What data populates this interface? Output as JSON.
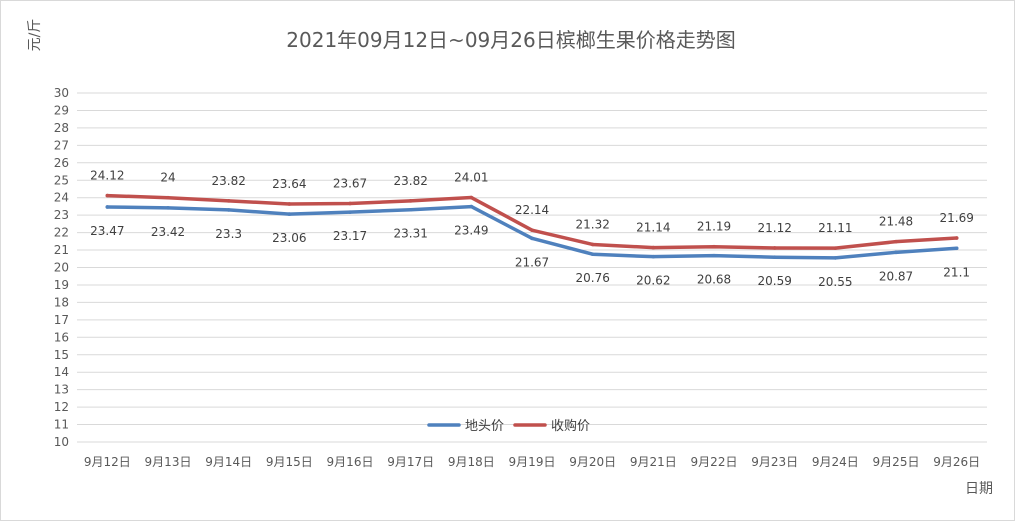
{
  "chart_data": {
    "type": "line",
    "title": "2021年09月12日~09月26日槟榔生果价格走势图",
    "ylabel": "元/斤",
    "xlabel": "日期",
    "ylim": [
      10,
      30
    ],
    "ytick_step": 1,
    "grid": true,
    "legend_position": "bottom-center",
    "categories": [
      "9月12日",
      "9月13日",
      "9月14日",
      "9月15日",
      "9月16日",
      "9月17日",
      "9月18日",
      "9月19日",
      "9月20日",
      "9月21日",
      "9月22日",
      "9月23日",
      "9月24日",
      "9月25日",
      "9月26日"
    ],
    "series": [
      {
        "name": "地头价",
        "color": "#4f81bd",
        "values": [
          23.47,
          23.42,
          23.3,
          23.06,
          23.17,
          23.31,
          23.49,
          21.67,
          20.76,
          20.62,
          20.68,
          20.59,
          20.55,
          20.87,
          21.1
        ],
        "labels": [
          "23.47",
          "23.42",
          "23.3",
          "23.06",
          "23.17",
          "23.31",
          "23.49",
          "21.67",
          "20.76",
          "20.62",
          "20.68",
          "20.59",
          "20.55",
          "20.87",
          "21.1"
        ]
      },
      {
        "name": "收购价",
        "color": "#c0504d",
        "values": [
          24.12,
          24,
          23.82,
          23.64,
          23.67,
          23.82,
          24.01,
          22.14,
          21.32,
          21.14,
          21.19,
          21.12,
          21.11,
          21.48,
          21.69
        ],
        "labels": [
          "24.12",
          "24",
          "23.82",
          "23.64",
          "23.67",
          "23.82",
          "24.01",
          "22.14",
          "21.32",
          "21.14",
          "21.19",
          "21.12",
          "21.11",
          "21.48",
          "21.69"
        ]
      }
    ]
  }
}
